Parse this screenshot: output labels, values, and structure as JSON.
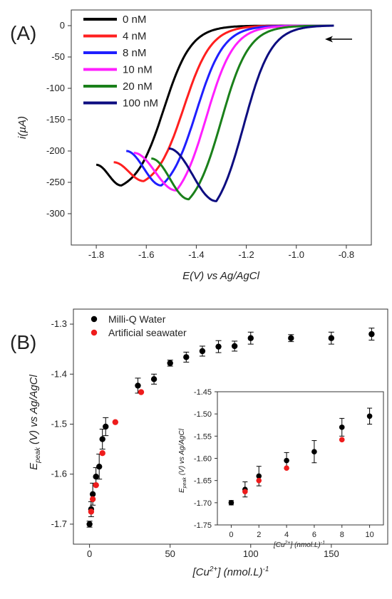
{
  "chart_data": [
    {
      "type": "line",
      "panel_label": "(A)",
      "xlabel": "E(V) vs Ag/AgCl",
      "ylabel": "i(µA)",
      "xlim": [
        -1.9,
        -0.7
      ],
      "ylim": [
        -350,
        25
      ],
      "x_ticks": [
        -1.8,
        -1.6,
        -1.4,
        -1.2,
        -1.0,
        -0.8
      ],
      "x_tick_labels": [
        "-1.8",
        "-1.6",
        "-1.4",
        "-1.2",
        "-1.0",
        "-0.8"
      ],
      "y_ticks": [
        0,
        -50,
        -100,
        -150,
        -200,
        -250,
        -300
      ],
      "y_tick_labels": [
        "0",
        "-50",
        "-100",
        "-150",
        "-200",
        "-250",
        "-300"
      ],
      "legend_position": "top-left",
      "annotation": "scan direction arrow (right to left) near -0.9 V",
      "series": [
        {
          "name": "0 nM",
          "color": "#000000",
          "start": [
            -1.8,
            -222
          ],
          "peak": [
            -1.7,
            -255
          ],
          "rise_center": -1.53,
          "end_x": -0.85
        },
        {
          "name": "4 nM",
          "color": "#ff1f1f",
          "start": [
            -1.73,
            -218
          ],
          "peak": [
            -1.61,
            -248
          ],
          "rise_center": -1.45,
          "end_x": -0.85
        },
        {
          "name": "8 nM",
          "color": "#1f1fff",
          "start": [
            -1.68,
            -200
          ],
          "peak": [
            -1.54,
            -255
          ],
          "rise_center": -1.4,
          "end_x": -0.85
        },
        {
          "name": "10 nM",
          "color": "#ff1fff",
          "start": [
            -1.65,
            -203
          ],
          "peak": [
            -1.48,
            -263
          ],
          "rise_center": -1.36,
          "end_x": -0.85
        },
        {
          "name": "20 nM",
          "color": "#1a801a",
          "start": [
            -1.58,
            -212
          ],
          "peak": [
            -1.43,
            -277
          ],
          "rise_center": -1.3,
          "end_x": -0.85
        },
        {
          "name": "100 nM",
          "color": "#0d0d80",
          "start": [
            -1.51,
            -196
          ],
          "peak": [
            -1.32,
            -280
          ],
          "rise_center": -1.21,
          "end_x": -0.85
        }
      ]
    },
    {
      "type": "scatter",
      "panel_label": "(B)",
      "xlabel": "[Cu²⁺] (nmol.L)⁻¹",
      "ylabel": "E_peak (V) vs Ag/AgCl",
      "xlim": [
        -10,
        185
      ],
      "ylim": [
        -1.74,
        -1.27
      ],
      "x_ticks": [
        0,
        50,
        100,
        150
      ],
      "x_tick_labels": [
        "0",
        "50",
        "100",
        "150"
      ],
      "y_ticks": [
        -1.3,
        -1.4,
        -1.5,
        -1.6,
        -1.7
      ],
      "y_tick_labels": [
        "-1.3",
        "-1.4",
        "-1.5",
        "-1.6",
        "-1.7"
      ],
      "legend_position": "top-left",
      "series": [
        {
          "name": "Milli-Q Water",
          "color": "#000000",
          "x": [
            0,
            1,
            2,
            4,
            6,
            8,
            10,
            30,
            40,
            50,
            60,
            70,
            80,
            90,
            100,
            125,
            150,
            175
          ],
          "y": [
            -1.7,
            -1.67,
            -1.64,
            -1.605,
            -1.585,
            -1.53,
            -1.505,
            -1.423,
            -1.41,
            -1.378,
            -1.366,
            -1.354,
            -1.345,
            -1.344,
            -1.328,
            -1.328,
            -1.328,
            -1.32
          ],
          "err": [
            0.006,
            0.015,
            0.022,
            0.018,
            0.025,
            0.02,
            0.018,
            0.015,
            0.01,
            0.006,
            0.01,
            0.01,
            0.012,
            0.01,
            0.012,
            0.007,
            0.012,
            0.012
          ]
        },
        {
          "name": "Artificial seawater",
          "color": "#ee1c1c",
          "x": [
            1,
            2,
            4,
            8,
            16,
            32
          ],
          "y": [
            -1.675,
            -1.65,
            -1.622,
            -1.558,
            -1.496,
            -1.436
          ]
        }
      ]
    },
    {
      "type": "scatter",
      "inset_of": "(B)",
      "xlabel": "[Cu²⁺] (nmol.L)⁻¹",
      "ylabel": "E_peak (V) vs Ag/AgCl",
      "xlim": [
        -1,
        11
      ],
      "ylim": [
        -1.75,
        -1.45
      ],
      "x_ticks": [
        0,
        2,
        4,
        6,
        8,
        10
      ],
      "x_tick_labels": [
        "0",
        "2",
        "4",
        "6",
        "8",
        "10"
      ],
      "y_ticks": [
        -1.45,
        -1.5,
        -1.55,
        -1.6,
        -1.65,
        -1.7,
        -1.75
      ],
      "y_tick_labels": [
        "-1.45",
        "-1.50",
        "-1.55",
        "-1.60",
        "-1.65",
        "-1.70",
        "-1.75"
      ],
      "series": [
        {
          "name": "Milli-Q Water",
          "color": "#000000",
          "x": [
            0,
            1,
            2,
            4,
            6,
            8,
            10
          ],
          "y": [
            -1.7,
            -1.67,
            -1.64,
            -1.605,
            -1.585,
            -1.53,
            -1.505
          ],
          "err": [
            0.005,
            0.017,
            0.022,
            0.018,
            0.025,
            0.02,
            0.018
          ]
        },
        {
          "name": "Artificial seawater",
          "color": "#ee1c1c",
          "x": [
            1,
            2,
            4,
            8
          ],
          "y": [
            -1.675,
            -1.65,
            -1.622,
            -1.558
          ]
        }
      ]
    }
  ]
}
